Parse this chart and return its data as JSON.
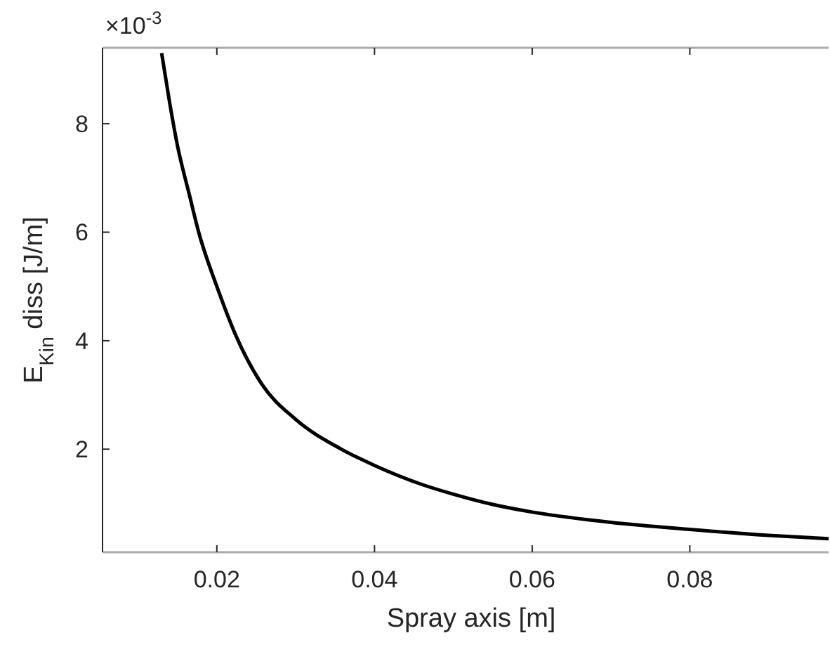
{
  "chart_data": {
    "type": "line",
    "xlabel": "Spray axis [m]",
    "ylabel": "E$_{Kin}$ diss [J/m]",
    "annotations": [
      "×10$^{-3}$"
    ],
    "xlim": [
      0.0055,
      0.0976
    ],
    "ylim": [
      0.1,
      9.4
    ],
    "xticks": [
      0.02,
      0.04,
      0.06,
      0.08
    ],
    "yticks": [
      2,
      4,
      6,
      8
    ],
    "grid": false,
    "marker": "none",
    "line_style": "solid",
    "series": [
      {
        "color": "#000000",
        "x": [
          0.013,
          0.014,
          0.015,
          0.0165,
          0.0177,
          0.02,
          0.0224,
          0.0257,
          0.03,
          0.0358,
          0.04,
          0.046,
          0.05,
          0.055,
          0.06,
          0.07,
          0.08,
          0.09,
          0.0976
        ],
        "values": [
          9.3,
          8.4,
          7.6,
          6.7,
          6.0,
          5.0,
          4.1,
          3.2,
          2.55,
          2.0,
          1.7,
          1.35,
          1.17,
          0.98,
          0.84,
          0.65,
          0.52,
          0.41,
          0.35
        ]
      }
    ]
  }
}
